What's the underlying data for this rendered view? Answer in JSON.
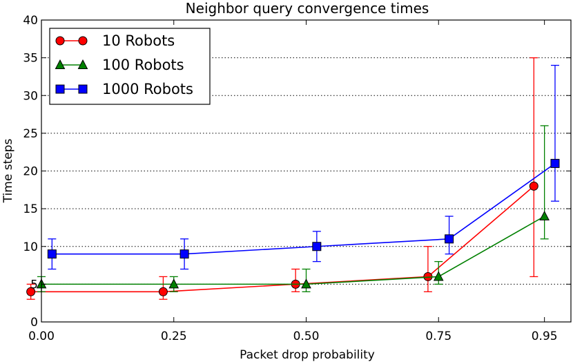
{
  "chart_data": {
    "type": "line",
    "title": "Neighbor query convergence times",
    "xlabel": "Packet drop probability",
    "ylabel": "Time steps",
    "xlim": [
      0.0,
      1.0
    ],
    "ylim": [
      0,
      40
    ],
    "categories": [
      "0.00",
      "0.25",
      "0.50",
      "0.75",
      "0.95"
    ],
    "x": [
      0.0,
      0.25,
      0.5,
      0.75,
      0.95
    ],
    "y_ticks": [
      0,
      5,
      10,
      15,
      20,
      25,
      30,
      35,
      40
    ],
    "grid": "horizontal dotted",
    "legend_position": "top-left",
    "series": [
      {
        "name": "10 Robots",
        "color": "#ff0000",
        "marker": "circle",
        "x_offset": -0.02,
        "values": [
          4,
          4,
          5,
          6,
          18
        ],
        "err_low": [
          3,
          3,
          4,
          4,
          6
        ],
        "err_high": [
          5,
          6,
          7,
          10,
          35
        ]
      },
      {
        "name": "100 Robots",
        "color": "#008000",
        "marker": "triangle",
        "x_offset": 0.0,
        "values": [
          5,
          5,
          5,
          6,
          14
        ],
        "err_low": [
          4,
          4,
          4,
          5,
          11
        ],
        "err_high": [
          6,
          6,
          7,
          8,
          26
        ]
      },
      {
        "name": "1000 Robots",
        "color": "#0000ff",
        "marker": "square",
        "x_offset": 0.02,
        "values": [
          9,
          9,
          10,
          11,
          21
        ],
        "err_low": [
          7,
          7,
          8,
          9,
          16
        ],
        "err_high": [
          11,
          11,
          12,
          14,
          34
        ]
      }
    ]
  }
}
